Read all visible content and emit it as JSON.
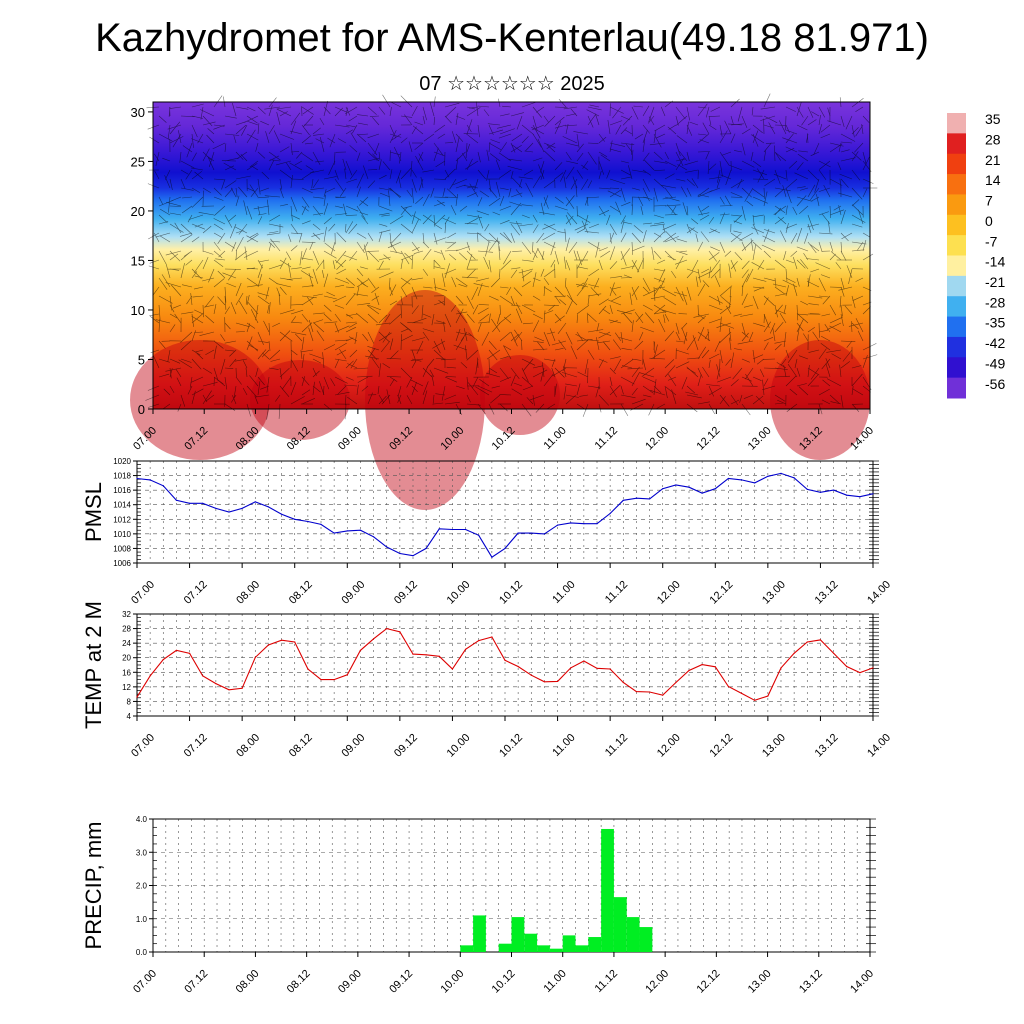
{
  "header": {
    "title": "Kazhydromet for AMS-Kenterlau(49.18 81.971)",
    "subtitle": "07 ☆☆☆☆☆☆ 2025"
  },
  "colors": {
    "pmsl_line": "#0000cc",
    "temp_line": "#dd0000",
    "precip_bar": "#00ee22"
  },
  "chart_data": [
    {
      "type": "heatmap",
      "description_hint": "cross-section shading with wind barbs",
      "y": {
        "ticks": [
          0,
          5,
          10,
          15,
          20,
          25,
          30
        ],
        "ylim": [
          0,
          31
        ]
      },
      "x": {
        "tick_labels": [
          "07.00",
          "07.12",
          "08.00",
          "08.12",
          "09.00",
          "09.12",
          "10.00",
          "10.12",
          "11.00",
          "11.12",
          "12.00",
          "12.12",
          "13.00",
          "13.12",
          "14.00"
        ]
      },
      "colorbar": {
        "labels": [
          "35",
          "28",
          "21",
          "14",
          "7",
          "0",
          "-7",
          "-14",
          "-21",
          "-28",
          "-35",
          "-42",
          "-49",
          "-56"
        ],
        "colors": [
          "#f0b0b0",
          "#e02020",
          "#f04010",
          "#f87010",
          "#fa9a10",
          "#fdc020",
          "#fde050",
          "#fff0a0",
          "#a0d8f0",
          "#40b0f0",
          "#2070f0",
          "#2030e0",
          "#3010d0",
          "#7030d8"
        ]
      }
    },
    {
      "type": "line",
      "ylabel": "PMSL",
      "ylim": [
        1006,
        1020
      ],
      "y_ticks": [
        "1020",
        "1018",
        "1016",
        "1014",
        "1012",
        "1010",
        "1008",
        "1006"
      ],
      "x_tick_labels": [
        "07.00",
        "07.12",
        "08.00",
        "08.12",
        "09.00",
        "09.12",
        "10.00",
        "10.12",
        "11.00",
        "11.12",
        "12.00",
        "12.12",
        "13.00",
        "13.12",
        "14.00"
      ],
      "x": [
        0,
        3,
        6,
        9,
        12,
        15,
        18,
        21,
        24,
        27,
        30,
        33,
        36,
        39,
        42,
        45,
        48,
        51,
        54,
        57,
        60,
        63,
        66,
        69,
        72,
        75,
        78,
        81,
        84,
        87,
        90,
        93,
        96,
        99,
        102,
        105,
        108,
        111,
        114,
        117,
        120,
        123,
        126,
        129,
        132,
        135,
        138,
        141,
        144,
        147,
        150,
        153,
        156,
        159,
        162,
        165,
        168
      ],
      "values": [
        1017.6,
        1017.4,
        1016.6,
        1014.6,
        1014.2,
        1014.2,
        1013.5,
        1013.0,
        1013.5,
        1014.4,
        1013.7,
        1012.7,
        1012.0,
        1011.7,
        1011.3,
        1010.1,
        1010.4,
        1010.5,
        1009.6,
        1008.2,
        1007.3,
        1007.0,
        1008.0,
        1010.7,
        1010.6,
        1010.6,
        1009.8,
        1006.8,
        1008.0,
        1010.1,
        1010.1,
        1010.0,
        1011.2,
        1011.5,
        1011.4,
        1011.4,
        1012.8,
        1014.6,
        1014.9,
        1014.8,
        1016.2,
        1016.7,
        1016.4,
        1015.6,
        1016.2,
        1017.6,
        1017.4,
        1017.0,
        1017.9,
        1018.3,
        1017.7,
        1016.1,
        1015.7,
        1016.0,
        1015.3,
        1015.1,
        1015.5
      ]
    },
    {
      "type": "line",
      "ylabel": "TEMP at 2 M",
      "ylim": [
        4,
        32
      ],
      "y_ticks": [
        "32",
        "28",
        "24",
        "20",
        "16",
        "12",
        "8",
        "4"
      ],
      "x_tick_labels": [
        "07.00",
        "07.12",
        "08.00",
        "08.12",
        "09.00",
        "09.12",
        "10.00",
        "10.12",
        "11.00",
        "11.12",
        "12.00",
        "12.12",
        "13.00",
        "13.12",
        "14.00"
      ],
      "x": [
        0,
        3,
        6,
        9,
        12,
        15,
        18,
        21,
        24,
        27,
        30,
        33,
        36,
        39,
        42,
        45,
        48,
        51,
        54,
        57,
        60,
        63,
        66,
        69,
        72,
        75,
        78,
        81,
        84,
        87,
        90,
        93,
        96,
        99,
        102,
        105,
        108,
        111,
        114,
        117,
        120,
        123,
        126,
        129,
        132,
        135,
        138,
        141,
        144,
        147,
        150,
        153,
        156,
        159,
        162,
        165,
        168
      ],
      "values": [
        9.2,
        15.0,
        19.5,
        22.0,
        21.2,
        15.0,
        12.9,
        11.2,
        11.6,
        20.1,
        23.5,
        24.8,
        24.3,
        16.9,
        14.0,
        14.0,
        15.3,
        22.0,
        25.2,
        28.0,
        27.1,
        21.0,
        20.8,
        20.4,
        16.9,
        22.3,
        24.7,
        25.7,
        19.3,
        17.6,
        15.2,
        13.4,
        13.5,
        17.2,
        19.1,
        17.1,
        16.9,
        13.2,
        10.7,
        10.6,
        9.7,
        13.2,
        16.5,
        18.1,
        17.5,
        12.1,
        10.2,
        8.3,
        9.5,
        17.2,
        21.2,
        24.3,
        24.9,
        21.2,
        17.6,
        15.9,
        17.2
      ]
    },
    {
      "type": "bar",
      "ylabel": "PRECIP, mm",
      "ylim": [
        0,
        4
      ],
      "y_ticks": [
        "4.0",
        "3.0",
        "2.0",
        "1.0",
        "0.0"
      ],
      "x_tick_labels": [
        "07.00",
        "07.12",
        "08.00",
        "08.12",
        "09.00",
        "09.12",
        "10.00",
        "10.12",
        "11.00",
        "11.12",
        "12.00",
        "12.12",
        "13.00",
        "13.12",
        "14.00"
      ],
      "x": [
        72,
        75,
        81,
        84,
        87,
        90,
        93,
        96,
        99,
        102,
        105,
        108,
        111,
        114,
        117
      ],
      "values": [
        0.2,
        1.1,
        0.25,
        1.05,
        0.55,
        0.2,
        0.1,
        0.5,
        0.2,
        0.45,
        3.7,
        1.65,
        1.05,
        0.75,
        0.0
      ]
    }
  ]
}
